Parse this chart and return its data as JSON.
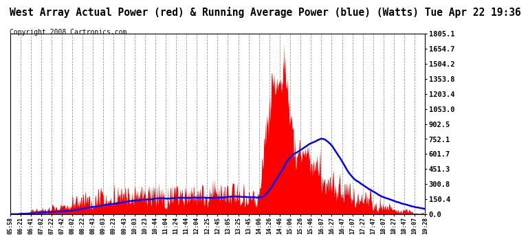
{
  "title": "West Array Actual Power (red) & Running Average Power (blue) (Watts) Tue Apr 22 19:36",
  "copyright": "Copyright 2008 Cartronics.com",
  "ymin": 0.0,
  "ymax": 1805.1,
  "yticks": [
    0.0,
    150.4,
    300.8,
    451.3,
    601.7,
    752.1,
    902.5,
    1053.0,
    1203.4,
    1353.8,
    1504.2,
    1654.7,
    1805.1
  ],
  "xtick_labels": [
    "05:58",
    "06:21",
    "06:41",
    "07:02",
    "07:22",
    "07:42",
    "08:02",
    "08:22",
    "08:43",
    "09:03",
    "09:23",
    "09:43",
    "10:03",
    "10:23",
    "10:44",
    "11:04",
    "11:24",
    "11:44",
    "12:04",
    "12:25",
    "12:45",
    "13:05",
    "13:25",
    "13:45",
    "14:06",
    "14:26",
    "14:46",
    "15:06",
    "15:26",
    "15:46",
    "16:07",
    "16:27",
    "16:47",
    "17:07",
    "17:27",
    "17:47",
    "18:07",
    "18:27",
    "18:47",
    "19:07",
    "19:28"
  ],
  "bg_color": "#ffffff",
  "fill_color": "#ff0000",
  "line_color": "#0000ff",
  "title_color": "#000000",
  "title_fontsize": 10.5,
  "copyright_fontsize": 7.0
}
